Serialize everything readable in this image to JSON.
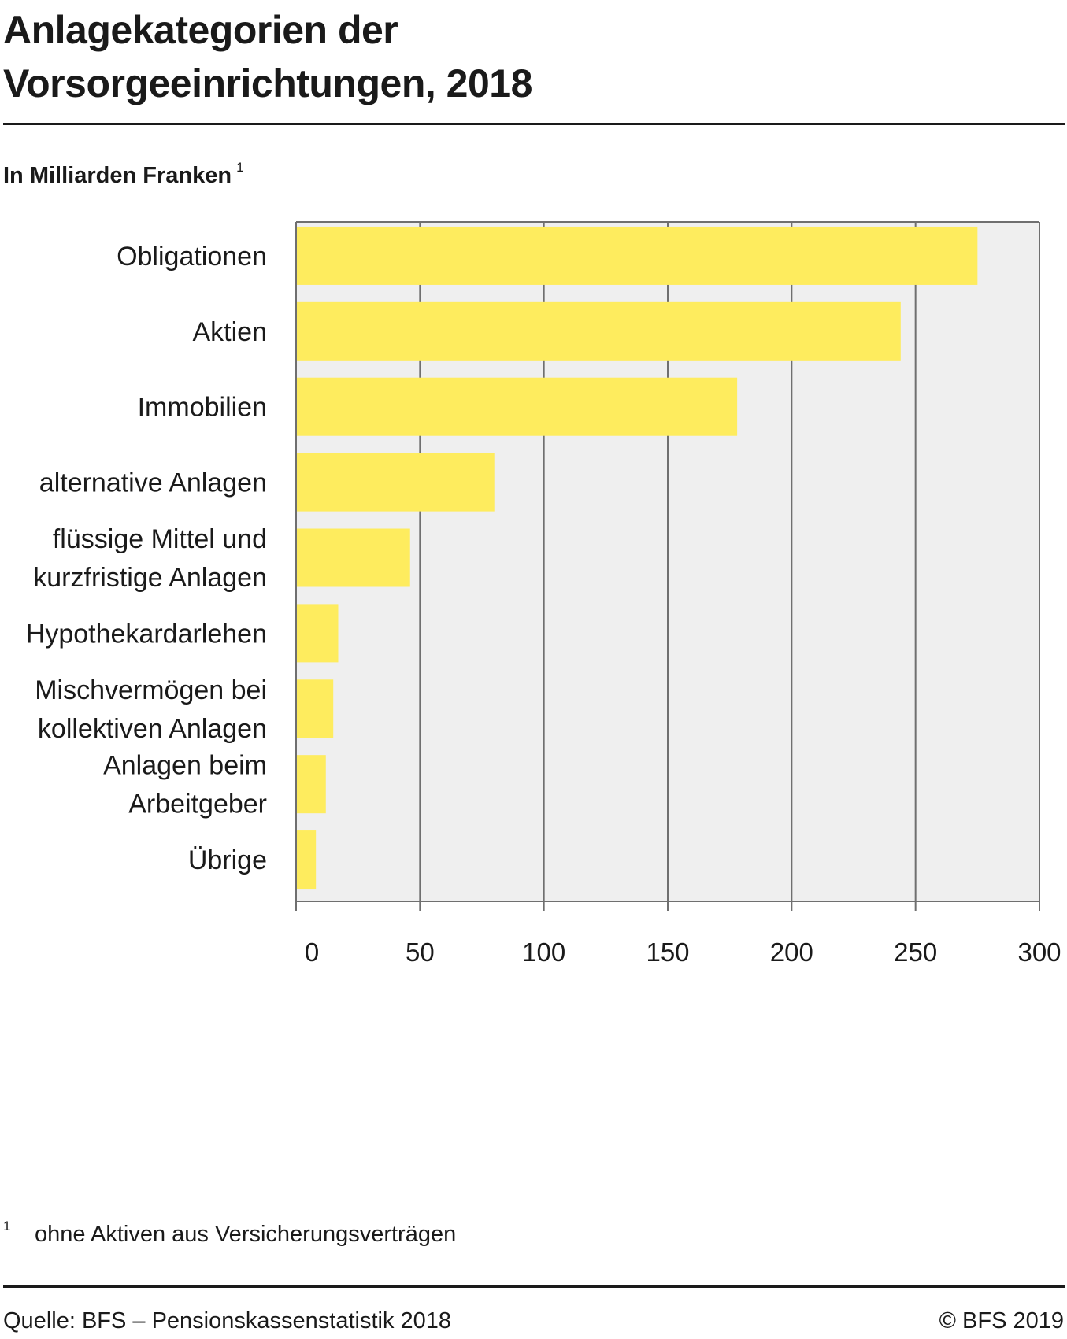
{
  "title_lines": [
    "Anlagekategorien der",
    "Vorsorgeeinrichtungen, 2018"
  ],
  "unit": "In Milliarden Franken",
  "unit_footnote_mark": "1",
  "footnote": {
    "mark": "1",
    "text": "ohne Aktiven aus Versicherungsverträgen"
  },
  "source": "Quelle: BFS – Pensionskassenstatistik 2018",
  "copyright": "© BFS 2019",
  "colors": {
    "bar": "#feec5e",
    "plot_background": "#efefef",
    "grid": "#6f6f6f",
    "text": "#1a1a1a"
  },
  "chart_data": {
    "type": "bar",
    "orientation": "horizontal",
    "categories": [
      [
        "Obligationen"
      ],
      [
        "Aktien"
      ],
      [
        "Immobilien"
      ],
      [
        "alternative Anlagen"
      ],
      [
        "flüssige Mittel und",
        "kurzfristige Anlagen"
      ],
      [
        "Hypothekardarlehen"
      ],
      [
        "Mischvermögen bei",
        "kollektiven Anlagen"
      ],
      [
        "Anlagen beim",
        "Arbeitgeber"
      ],
      [
        "Übrige"
      ]
    ],
    "values": [
      275,
      244,
      178,
      80,
      46,
      17,
      15,
      12,
      8
    ],
    "xlim": [
      0,
      300
    ],
    "xticks": [
      "0",
      "50",
      "100",
      "150",
      "200",
      "250",
      "300"
    ],
    "grid": true,
    "xlabel": "",
    "ylabel": ""
  }
}
